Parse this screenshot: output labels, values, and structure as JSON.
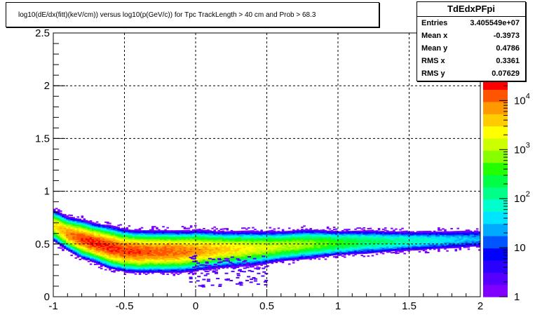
{
  "chart_data": {
    "type": "heatmap",
    "title": "log10(dE/dx(fitt)(keV/cm)) versus log10(p(GeV/c)) for Tpc TrackLength > 40 cm and Prob > 68.3",
    "xlabel": "",
    "ylabel": "",
    "xlim": [
      -1,
      2
    ],
    "ylim": [
      0,
      2.5
    ],
    "x_ticks": [
      "-1",
      "-0.5",
      "0",
      "0.5",
      "1",
      "1.5",
      "2"
    ],
    "y_ticks": [
      "0",
      "0.5",
      "1",
      "1.5",
      "2",
      "2.5"
    ],
    "grid": true,
    "z_scale": "log",
    "z_range": [
      1,
      30000
    ],
    "z_ticks": [
      "1",
      "10",
      "10",
      "10",
      "10"
    ],
    "z_exponents": [
      "",
      "",
      "2",
      "3",
      "4"
    ],
    "band": {
      "x": [
        -1.0,
        -0.9,
        -0.8,
        -0.7,
        -0.6,
        -0.5,
        -0.4,
        -0.3,
        -0.2,
        -0.1,
        0.0,
        0.2,
        0.4,
        0.6,
        0.8,
        1.0,
        1.2,
        1.5,
        2.0
      ],
      "center": [
        0.68,
        0.6,
        0.55,
        0.51,
        0.47,
        0.44,
        0.43,
        0.43,
        0.43,
        0.43,
        0.44,
        0.45,
        0.46,
        0.48,
        0.5,
        0.51,
        0.52,
        0.53,
        0.55
      ],
      "width": [
        0.09,
        0.09,
        0.1,
        0.1,
        0.11,
        0.11,
        0.11,
        0.11,
        0.11,
        0.11,
        0.11,
        0.1,
        0.1,
        0.09,
        0.09,
        0.08,
        0.08,
        0.07,
        0.07
      ],
      "peak_log_density": [
        3.4,
        3.9,
        4.2,
        4.3,
        4.3,
        4.2,
        4.2,
        4.1,
        4.1,
        4.0,
        3.9,
        3.6,
        3.3,
        3.1,
        2.9,
        2.6,
        2.3,
        2.0,
        1.4
      ]
    }
  },
  "stats": {
    "name": "TdEdxPFpi",
    "rows": [
      {
        "label": "Entries",
        "value": "3.405549e+07"
      },
      {
        "label": "Mean x",
        "value": "-0.3973"
      },
      {
        "label": "Mean y",
        "value": "0.4786"
      },
      {
        "label": "RMS x",
        "value": "0.3361"
      },
      {
        "label": "RMS y",
        "value": "0.07629"
      }
    ]
  },
  "palette": [
    "#7f00ff",
    "#5500ff",
    "#2a00ff",
    "#0000ff",
    "#0055ff",
    "#00aaff",
    "#00e5ff",
    "#00ffcc",
    "#00ff88",
    "#00ff44",
    "#22ff00",
    "#88ff00",
    "#ccff00",
    "#ffff00",
    "#ffcc00",
    "#ff9900",
    "#ff5500",
    "#ff0000"
  ]
}
